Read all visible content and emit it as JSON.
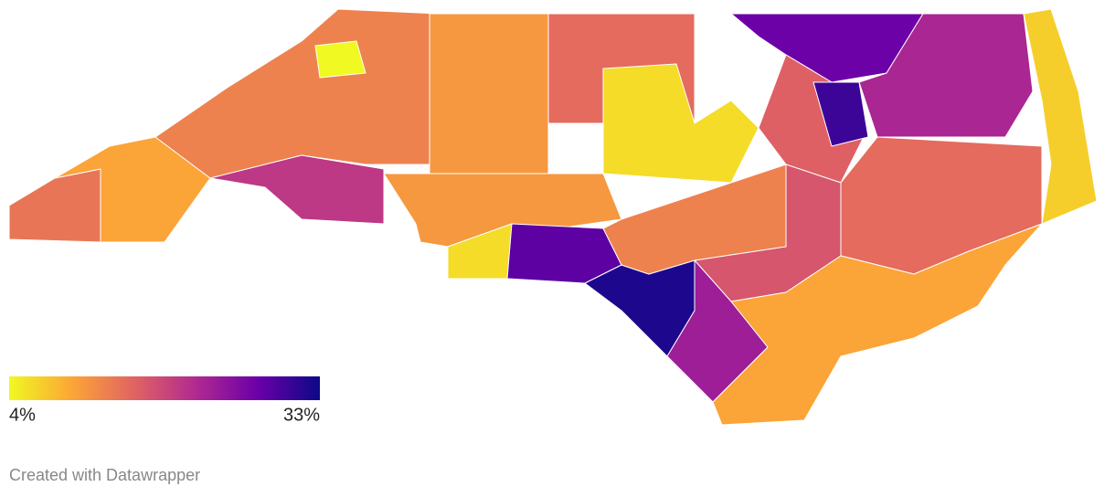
{
  "map": {
    "regions": {
      "values": [
        14,
        10,
        13,
        4,
        20,
        11,
        15,
        6,
        11,
        6,
        28,
        32,
        13,
        27,
        16,
        30,
        22,
        7,
        15,
        17,
        23,
        10
      ]
    },
    "colors": [
      "#f0f921",
      "#fca636",
      "#e16462",
      "#b12a90",
      "#6a00a8",
      "#0d0887"
    ]
  },
  "legend": {
    "min": {
      "value": 4,
      "label": "4%"
    },
    "max": {
      "value": 33,
      "label": "33%"
    }
  },
  "footer": "Created with Datawrapper"
}
